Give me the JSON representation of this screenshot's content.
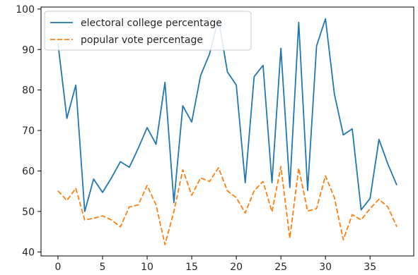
{
  "chart_data": {
    "type": "line",
    "title": "",
    "xlabel": "",
    "ylabel": "",
    "xlim": [
      -1.9,
      39.9
    ],
    "ylim": [
      39,
      100.5
    ],
    "xticks": [
      0,
      5,
      10,
      15,
      20,
      25,
      30,
      35
    ],
    "yticks": [
      40,
      50,
      60,
      70,
      80,
      90,
      100
    ],
    "grid": false,
    "legend_position": "top-left",
    "x": [
      0,
      1,
      2,
      3,
      4,
      5,
      6,
      7,
      8,
      9,
      10,
      11,
      12,
      13,
      14,
      15,
      16,
      17,
      18,
      19,
      20,
      21,
      22,
      23,
      24,
      25,
      26,
      27,
      28,
      29,
      30,
      31,
      32,
      33,
      34,
      35,
      36,
      37,
      38
    ],
    "series": [
      {
        "name": "electoral college percentage",
        "color": "#1f77b4",
        "style": "solid",
        "values": [
          91.5,
          73,
          81.2,
          50,
          58,
          54.7,
          58.3,
          62.3,
          60.9,
          65.6,
          70.7,
          66.6,
          81.9,
          52.2,
          76.1,
          72.1,
          83.6,
          88.9,
          97.6,
          84.5,
          81.2,
          57.1,
          83.3,
          86.1,
          57.1,
          90.3,
          55.9,
          96.7,
          55.2,
          90.9,
          97.6,
          79,
          68.9,
          70.4,
          50.4,
          53.2,
          67.8,
          61.7,
          56.5
        ]
      },
      {
        "name": "popular vote percentage",
        "color": "#ff7f0e",
        "style": "dashed",
        "values": [
          55.1,
          52.7,
          55.7,
          47.9,
          48.3,
          48.9,
          47.9,
          46.2,
          51.1,
          51.6,
          56.4,
          51.6,
          41.8,
          50,
          60.3,
          54,
          58.3,
          57.4,
          60.8,
          55.1,
          53.4,
          49.6,
          55.1,
          57.4,
          49.9,
          61.1,
          43.4,
          60.7,
          50.1,
          50.7,
          58.8,
          53.4,
          43,
          49.2,
          47.9,
          50.7,
          53,
          51.1,
          46.2
        ]
      }
    ]
  }
}
